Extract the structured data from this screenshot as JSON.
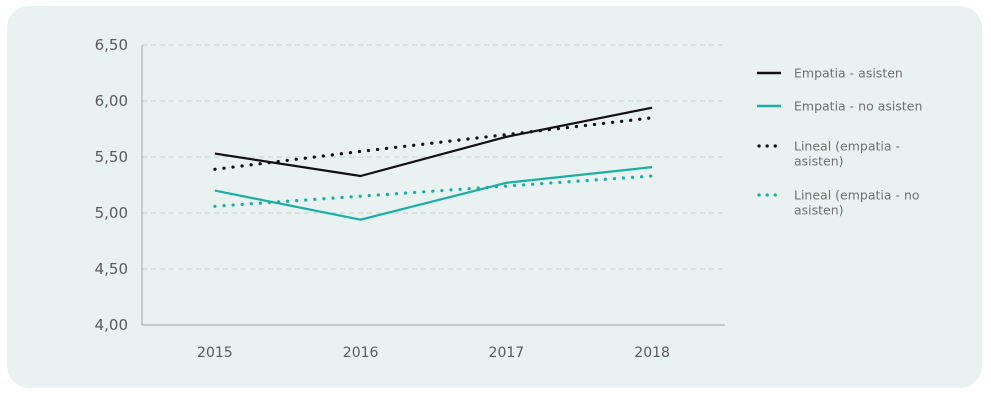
{
  "chart_data": {
    "type": "line",
    "title": "",
    "xlabel": "",
    "ylabel": "",
    "categories": [
      "2015",
      "2016",
      "2017",
      "2018"
    ],
    "ylim": [
      4.0,
      6.5
    ],
    "yticks": [
      "4,00",
      "4,50",
      "5,00",
      "5,50",
      "6,00",
      "6,50"
    ],
    "grid": true,
    "legend_position": "right",
    "series": [
      {
        "name": "Empatia - asisten",
        "values": [
          5.53,
          5.33,
          5.68,
          5.94
        ],
        "color": "#111111",
        "style": "solid"
      },
      {
        "name": "Empatia - no asisten",
        "values": [
          5.2,
          4.94,
          5.27,
          5.41
        ],
        "color": "#1aafa6",
        "style": "solid"
      },
      {
        "name": "Lineal (empatia - asisten)",
        "values": [
          5.39,
          5.55,
          5.7,
          5.85
        ],
        "color": "#111111",
        "style": "dotted"
      },
      {
        "name": "Lineal (empatia - no asisten)",
        "values": [
          5.06,
          5.15,
          5.24,
          5.33
        ],
        "color": "#1aafa6",
        "style": "dotted"
      }
    ]
  }
}
